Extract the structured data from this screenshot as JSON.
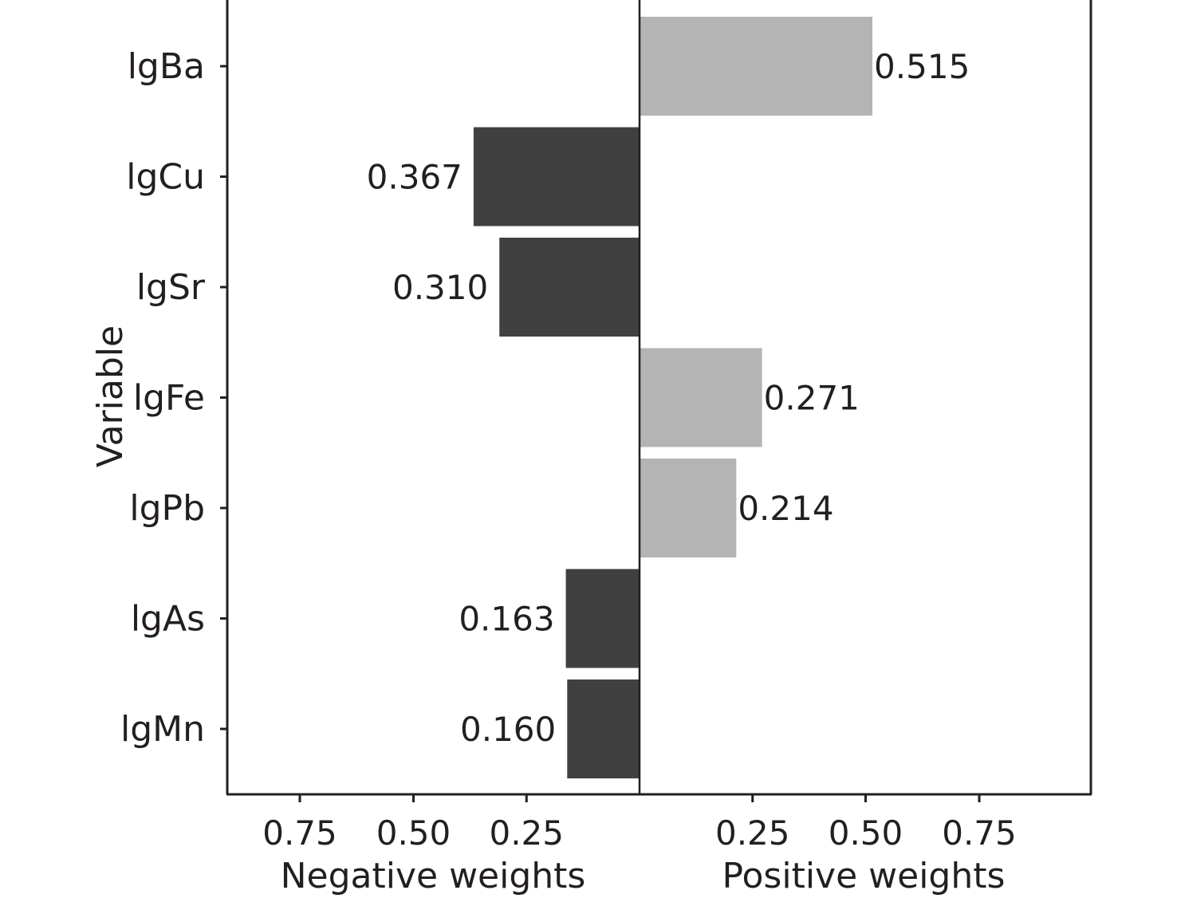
{
  "chart_data": {
    "type": "bar",
    "orientation": "horizontal",
    "ylabel": "Variable",
    "categories": [
      "lgBa",
      "lgCu",
      "lgSr",
      "lgFe",
      "lgPb",
      "lgAs",
      "lgMn"
    ],
    "values": [
      0.515,
      -0.367,
      -0.31,
      0.271,
      0.214,
      -0.163,
      -0.16
    ],
    "value_labels": [
      "0.515",
      "0.367",
      "0.310",
      "0.271",
      "0.214",
      "0.163",
      "0.160"
    ],
    "panels": [
      {
        "name": "negative",
        "xlabel": "Negative weights",
        "ticks": [
          0.75,
          0.5,
          0.25
        ],
        "tick_labels": [
          "0.75",
          "0.50",
          "0.25"
        ],
        "direction": "reversed",
        "color": "#404040"
      },
      {
        "name": "positive",
        "xlabel": "Positive weights",
        "ticks": [
          0.25,
          0.5,
          0.75
        ],
        "tick_labels": [
          "0.25",
          "0.50",
          "0.75"
        ],
        "direction": "normal",
        "color": "#b5b4b5"
      }
    ],
    "grid": false,
    "legend": "none"
  }
}
